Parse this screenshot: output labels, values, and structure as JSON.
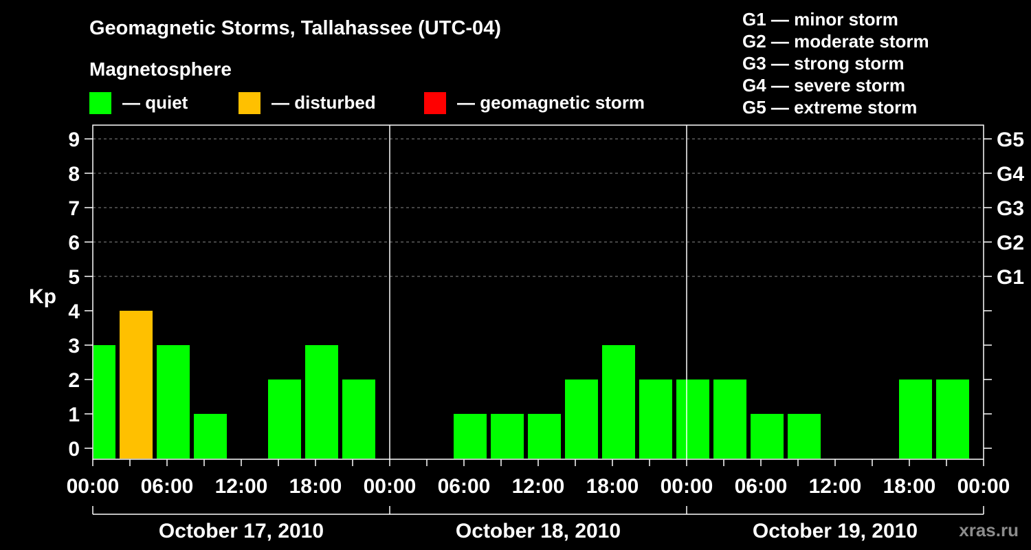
{
  "watermark": "xras.ru",
  "chart_data": {
    "type": "bar",
    "title": "Geomagnetic Storms, Tallahassee (UTC-04)",
    "xlabel": "",
    "ylabel": "Kp",
    "ylim": [
      -0.32,
      9.4
    ],
    "yticks": [
      0,
      1,
      2,
      3,
      4,
      5,
      6,
      7,
      8,
      9
    ],
    "grid": {
      "y": [
        5,
        6,
        7,
        8,
        9
      ]
    },
    "right_axis_labels": [
      {
        "kp": 5,
        "label": "G1"
      },
      {
        "kp": 6,
        "label": "G2"
      },
      {
        "kp": 7,
        "label": "G3"
      },
      {
        "kp": 8,
        "label": "G4"
      },
      {
        "kp": 9,
        "label": "G5"
      }
    ],
    "xlim": [
      "2010-10-17 00:00",
      "2010-10-20 00:00"
    ],
    "x_tick_labels": [
      "00:00",
      "06:00",
      "12:00",
      "18:00",
      "00:00",
      "06:00",
      "12:00",
      "18:00",
      "00:00",
      "06:00",
      "12:00",
      "18:00",
      "00:00"
    ],
    "day_labels": [
      "October 17, 2010",
      "October 18, 2010",
      "October 19, 2010"
    ],
    "legend_placement": "top-left",
    "legend": {
      "title": "Magnetosphere",
      "items": [
        {
          "label": "— quiet",
          "color": "#00FF00"
        },
        {
          "label": "— disturbed",
          "color": "#FFC000"
        },
        {
          "label": "— geomagnetic storm",
          "color": "#FF0000"
        }
      ]
    },
    "storm_scale": [
      "G1 — minor storm",
      "G2 — moderate storm",
      "G3 — strong storm",
      "G4 — severe storm",
      "G5 — extreme storm"
    ],
    "bars": [
      {
        "x": "2010-10-17 00:30",
        "kp": 3,
        "color": "#00FF00"
      },
      {
        "x": "2010-10-17 03:30",
        "kp": 4,
        "color": "#FFC000"
      },
      {
        "x": "2010-10-17 06:30",
        "kp": 3,
        "color": "#00FF00"
      },
      {
        "x": "2010-10-17 09:30",
        "kp": 1,
        "color": "#00FF00"
      },
      {
        "x": "2010-10-17 15:30",
        "kp": 2,
        "color": "#00FF00"
      },
      {
        "x": "2010-10-17 18:30",
        "kp": 3,
        "color": "#00FF00"
      },
      {
        "x": "2010-10-17 21:30",
        "kp": 2,
        "color": "#00FF00"
      },
      {
        "x": "2010-10-18 06:30",
        "kp": 1,
        "color": "#00FF00"
      },
      {
        "x": "2010-10-18 09:30",
        "kp": 1,
        "color": "#00FF00"
      },
      {
        "x": "2010-10-18 12:30",
        "kp": 1,
        "color": "#00FF00"
      },
      {
        "x": "2010-10-18 15:30",
        "kp": 2,
        "color": "#00FF00"
      },
      {
        "x": "2010-10-18 18:30",
        "kp": 3,
        "color": "#00FF00"
      },
      {
        "x": "2010-10-18 21:30",
        "kp": 2,
        "color": "#00FF00"
      },
      {
        "x": "2010-10-19 00:30",
        "kp": 2,
        "color": "#00FF00"
      },
      {
        "x": "2010-10-19 03:30",
        "kp": 2,
        "color": "#00FF00"
      },
      {
        "x": "2010-10-19 06:30",
        "kp": 1,
        "color": "#00FF00"
      },
      {
        "x": "2010-10-19 09:30",
        "kp": 1,
        "color": "#00FF00"
      },
      {
        "x": "2010-10-19 18:30",
        "kp": 2,
        "color": "#00FF00"
      },
      {
        "x": "2010-10-19 21:30",
        "kp": 2,
        "color": "#00FF00"
      }
    ]
  }
}
